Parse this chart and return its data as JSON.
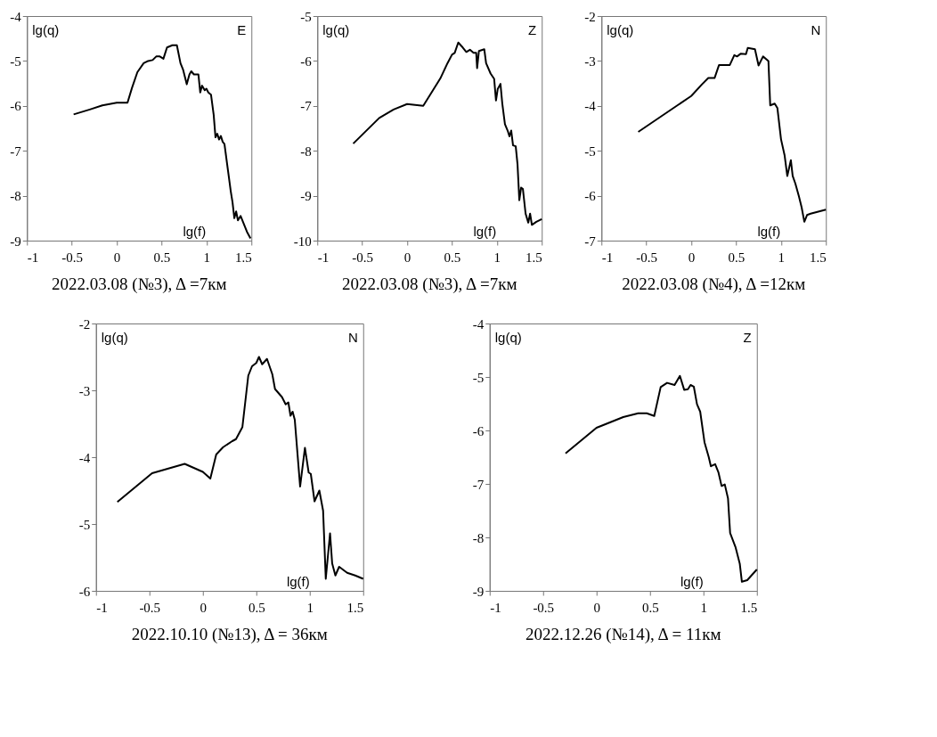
{
  "chart_data": [
    {
      "type": "line",
      "title": "2022.03.08 (№3), Δ =7км",
      "annotations": [
        "lg(q)",
        "E",
        "lg(f)"
      ],
      "xlim": [
        -1,
        1.5
      ],
      "xticks": [
        -1,
        -0.5,
        0,
        0.5,
        1,
        1.5
      ],
      "ylim": [
        -9,
        -4
      ],
      "yticks": [
        -9,
        -8,
        -7,
        -6,
        -5,
        -4
      ],
      "x": [
        -0.48,
        -0.3,
        -0.16,
        0,
        0.12,
        0.17,
        0.23,
        0.3,
        0.35,
        0.4,
        0.44,
        0.48,
        0.52,
        0.56,
        0.62,
        0.67,
        0.71,
        0.74,
        0.78,
        0.81,
        0.83,
        0.86,
        0.91,
        0.93,
        0.95,
        0.98,
        1.0,
        1.02,
        1.05,
        1.08,
        1.1,
        1.12,
        1.14,
        1.16,
        1.18,
        1.2,
        1.23,
        1.25,
        1.27,
        1.29,
        1.31,
        1.33,
        1.35,
        1.38,
        1.41,
        1.45,
        1.49
      ],
      "series": [
        {
          "color": "#000000",
          "values": [
            -6.19,
            -6.08,
            -5.99,
            -5.93,
            -5.93,
            -5.6,
            -5.25,
            -5.05,
            -5.0,
            -4.98,
            -4.9,
            -4.9,
            -4.95,
            -4.7,
            -4.65,
            -4.65,
            -5.05,
            -5.2,
            -5.52,
            -5.3,
            -5.23,
            -5.3,
            -5.3,
            -5.7,
            -5.55,
            -5.65,
            -5.62,
            -5.7,
            -5.75,
            -6.2,
            -6.7,
            -6.62,
            -6.75,
            -6.67,
            -6.8,
            -6.85,
            -7.3,
            -7.6,
            -7.9,
            -8.15,
            -8.5,
            -8.35,
            -8.55,
            -8.45,
            -8.6,
            -8.8,
            -8.95
          ]
        }
      ]
    },
    {
      "type": "line",
      "title": "2022.03.08 (№3), Δ =7км",
      "annotations": [
        "lg(q)",
        "Z",
        "lg(f)"
      ],
      "xlim": [
        -1,
        1.5
      ],
      "xticks": [
        -1,
        -0.5,
        0,
        0.5,
        1,
        1.5
      ],
      "ylim": [
        -10,
        -5
      ],
      "yticks": [
        -10,
        -9,
        -8,
        -7,
        -6,
        -5
      ],
      "x": [
        -0.6,
        -0.31,
        -0.15,
        0,
        0.18,
        0.37,
        0.45,
        0.5,
        0.53,
        0.57,
        0.62,
        0.66,
        0.7,
        0.74,
        0.77,
        0.78,
        0.8,
        0.86,
        0.88,
        0.93,
        0.97,
        0.99,
        1.01,
        1.04,
        1.06,
        1.09,
        1.12,
        1.14,
        1.16,
        1.18,
        1.21,
        1.23,
        1.25,
        1.27,
        1.29,
        1.32,
        1.35,
        1.37,
        1.39,
        1.44,
        1.5
      ],
      "series": [
        {
          "color": "#000000",
          "values": [
            -7.84,
            -7.27,
            -7.08,
            -6.96,
            -7.0,
            -6.39,
            -6.05,
            -5.86,
            -5.82,
            -5.59,
            -5.7,
            -5.8,
            -5.75,
            -5.82,
            -5.82,
            -6.16,
            -5.78,
            -5.74,
            -6.05,
            -6.28,
            -6.4,
            -6.88,
            -6.62,
            -6.51,
            -6.94,
            -7.41,
            -7.55,
            -7.68,
            -7.55,
            -7.88,
            -7.9,
            -8.3,
            -9.1,
            -8.82,
            -8.85,
            -9.4,
            -9.6,
            -9.4,
            -9.65,
            -9.58,
            -9.52
          ]
        }
      ]
    },
    {
      "type": "line",
      "title": "2022.03.08 (№4), Δ =12км",
      "annotations": [
        "lg(q)",
        "N",
        "lg(f)"
      ],
      "xlim": [
        -1,
        1.5
      ],
      "xticks": [
        -1,
        -0.5,
        0,
        0.5,
        1,
        1.5
      ],
      "ylim": [
        -7,
        -2
      ],
      "yticks": [
        -7,
        -6,
        -5,
        -4,
        -3,
        -2
      ],
      "x": [
        -0.59,
        0,
        0.12,
        0.19,
        0.26,
        0.31,
        0.43,
        0.48,
        0.51,
        0.55,
        0.61,
        0.63,
        0.71,
        0.75,
        0.8,
        0.86,
        0.88,
        0.93,
        0.96,
        1.0,
        1.04,
        1.07,
        1.11,
        1.13,
        1.16,
        1.2,
        1.23,
        1.26,
        1.29,
        1.33,
        1.5
      ],
      "series": [
        {
          "color": "#000000",
          "values": [
            -4.58,
            -3.78,
            -3.52,
            -3.38,
            -3.38,
            -3.09,
            -3.09,
            -2.87,
            -2.9,
            -2.84,
            -2.85,
            -2.71,
            -2.74,
            -3.1,
            -2.9,
            -3.0,
            -3.99,
            -3.95,
            -4.05,
            -4.74,
            -5.1,
            -5.56,
            -5.21,
            -5.56,
            -5.73,
            -6.02,
            -6.26,
            -6.58,
            -6.43,
            -6.4,
            -6.31
          ]
        }
      ]
    },
    {
      "type": "line",
      "title": "2022.10.10 (№13), Δ = 36км",
      "annotations": [
        "lg(q)",
        "N",
        "lg(f)"
      ],
      "xlim": [
        -1,
        1.5
      ],
      "xticks": [
        -1,
        -0.5,
        0,
        0.5,
        1,
        1.5
      ],
      "ylim": [
        -6,
        -2
      ],
      "yticks": [
        -6,
        -5,
        -4,
        -3,
        -2
      ],
      "x": [
        -0.8,
        -0.475,
        -0.17,
        0,
        0.07,
        0.125,
        0.19,
        0.275,
        0.31,
        0.37,
        0.425,
        0.46,
        0.5,
        0.525,
        0.555,
        0.6,
        0.65,
        0.675,
        0.74,
        0.775,
        0.8,
        0.82,
        0.84,
        0.86,
        0.91,
        0.955,
        0.99,
        1.01,
        1.045,
        1.09,
        1.125,
        1.15,
        1.19,
        1.21,
        1.24,
        1.275,
        1.35,
        1.425,
        1.5
      ],
      "series": [
        {
          "color": "#000000",
          "values": [
            -4.67,
            -4.24,
            -4.1,
            -4.22,
            -4.32,
            -3.96,
            -3.85,
            -3.76,
            -3.73,
            -3.55,
            -2.78,
            -2.64,
            -2.59,
            -2.5,
            -2.61,
            -2.53,
            -2.76,
            -2.98,
            -3.1,
            -3.21,
            -3.18,
            -3.38,
            -3.32,
            -3.44,
            -4.44,
            -3.86,
            -4.23,
            -4.25,
            -4.66,
            -4.5,
            -4.8,
            -5.82,
            -5.14,
            -5.59,
            -5.77,
            -5.64,
            -5.73,
            -5.77,
            -5.82
          ]
        }
      ]
    },
    {
      "type": "line",
      "title": "2022.12.26 (№14), Δ = 11км",
      "annotations": [
        "lg(q)",
        "Z",
        "lg(f)"
      ],
      "xlim": [
        -1,
        1.5
      ],
      "xticks": [
        -1,
        -0.5,
        0,
        0.5,
        1,
        1.5
      ],
      "ylim": [
        -9,
        -4
      ],
      "yticks": [
        -9,
        -8,
        -7,
        -6,
        -5,
        -4
      ],
      "x": [
        -0.29,
        0,
        0.25,
        0.39,
        0.47,
        0.54,
        0.6,
        0.66,
        0.73,
        0.78,
        0.82,
        0.855,
        0.88,
        0.91,
        0.94,
        0.97,
        1.01,
        1.05,
        1.07,
        1.11,
        1.14,
        1.17,
        1.2,
        1.23,
        1.25,
        1.3,
        1.34,
        1.36,
        1.41,
        1.5
      ],
      "series": [
        {
          "color": "#000000",
          "values": [
            -6.43,
            -5.95,
            -5.75,
            -5.68,
            -5.68,
            -5.73,
            -5.19,
            -5.11,
            -5.15,
            -4.98,
            -5.24,
            -5.23,
            -5.15,
            -5.18,
            -5.51,
            -5.65,
            -6.22,
            -6.5,
            -6.67,
            -6.63,
            -6.78,
            -7.04,
            -7.01,
            -7.27,
            -7.92,
            -8.18,
            -8.49,
            -8.83,
            -8.8,
            -8.6
          ]
        }
      ]
    }
  ]
}
